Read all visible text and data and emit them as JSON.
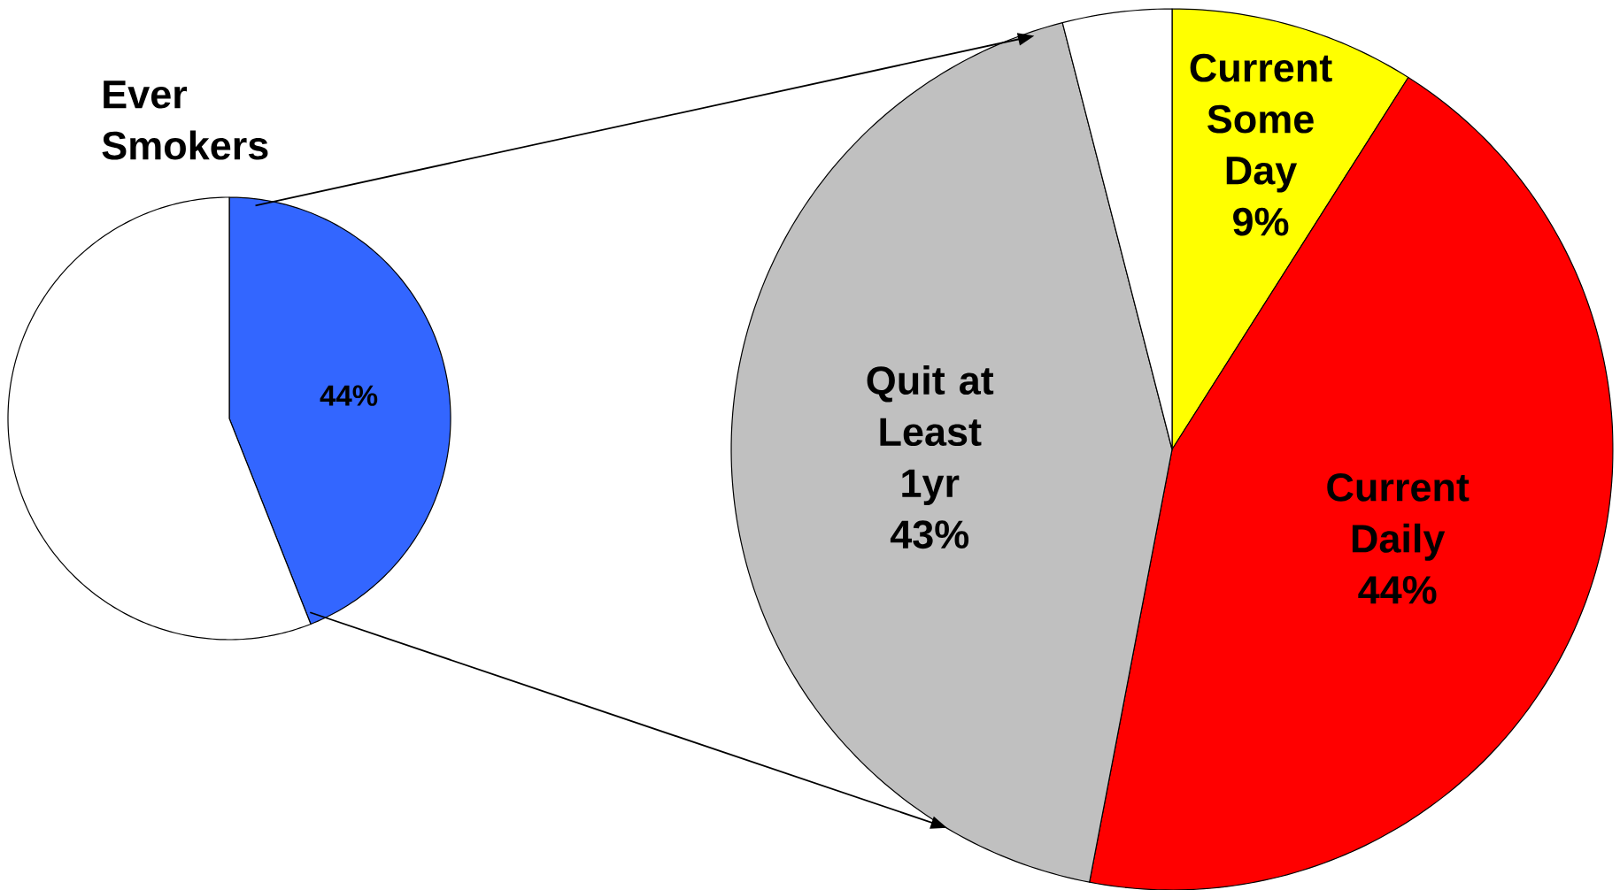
{
  "chart_data": [
    {
      "type": "pie",
      "title": "Ever Smokers",
      "categories": [
        null,
        null
      ],
      "values": [
        44,
        56
      ],
      "colors": [
        "#3366ff",
        "#ffffff"
      ],
      "value_labels": [
        "44%",
        null
      ]
    },
    {
      "type": "pie",
      "categories": [
        "Current Some Day",
        "Current Daily",
        "Quit at Least 1yr",
        null
      ],
      "values": [
        9,
        44,
        43,
        4
      ],
      "colors": [
        "#ffff00",
        "#ff0000",
        "#c0c0c0",
        "#ffffff"
      ],
      "value_labels": [
        "9%",
        "44%",
        "43%",
        null
      ]
    }
  ]
}
